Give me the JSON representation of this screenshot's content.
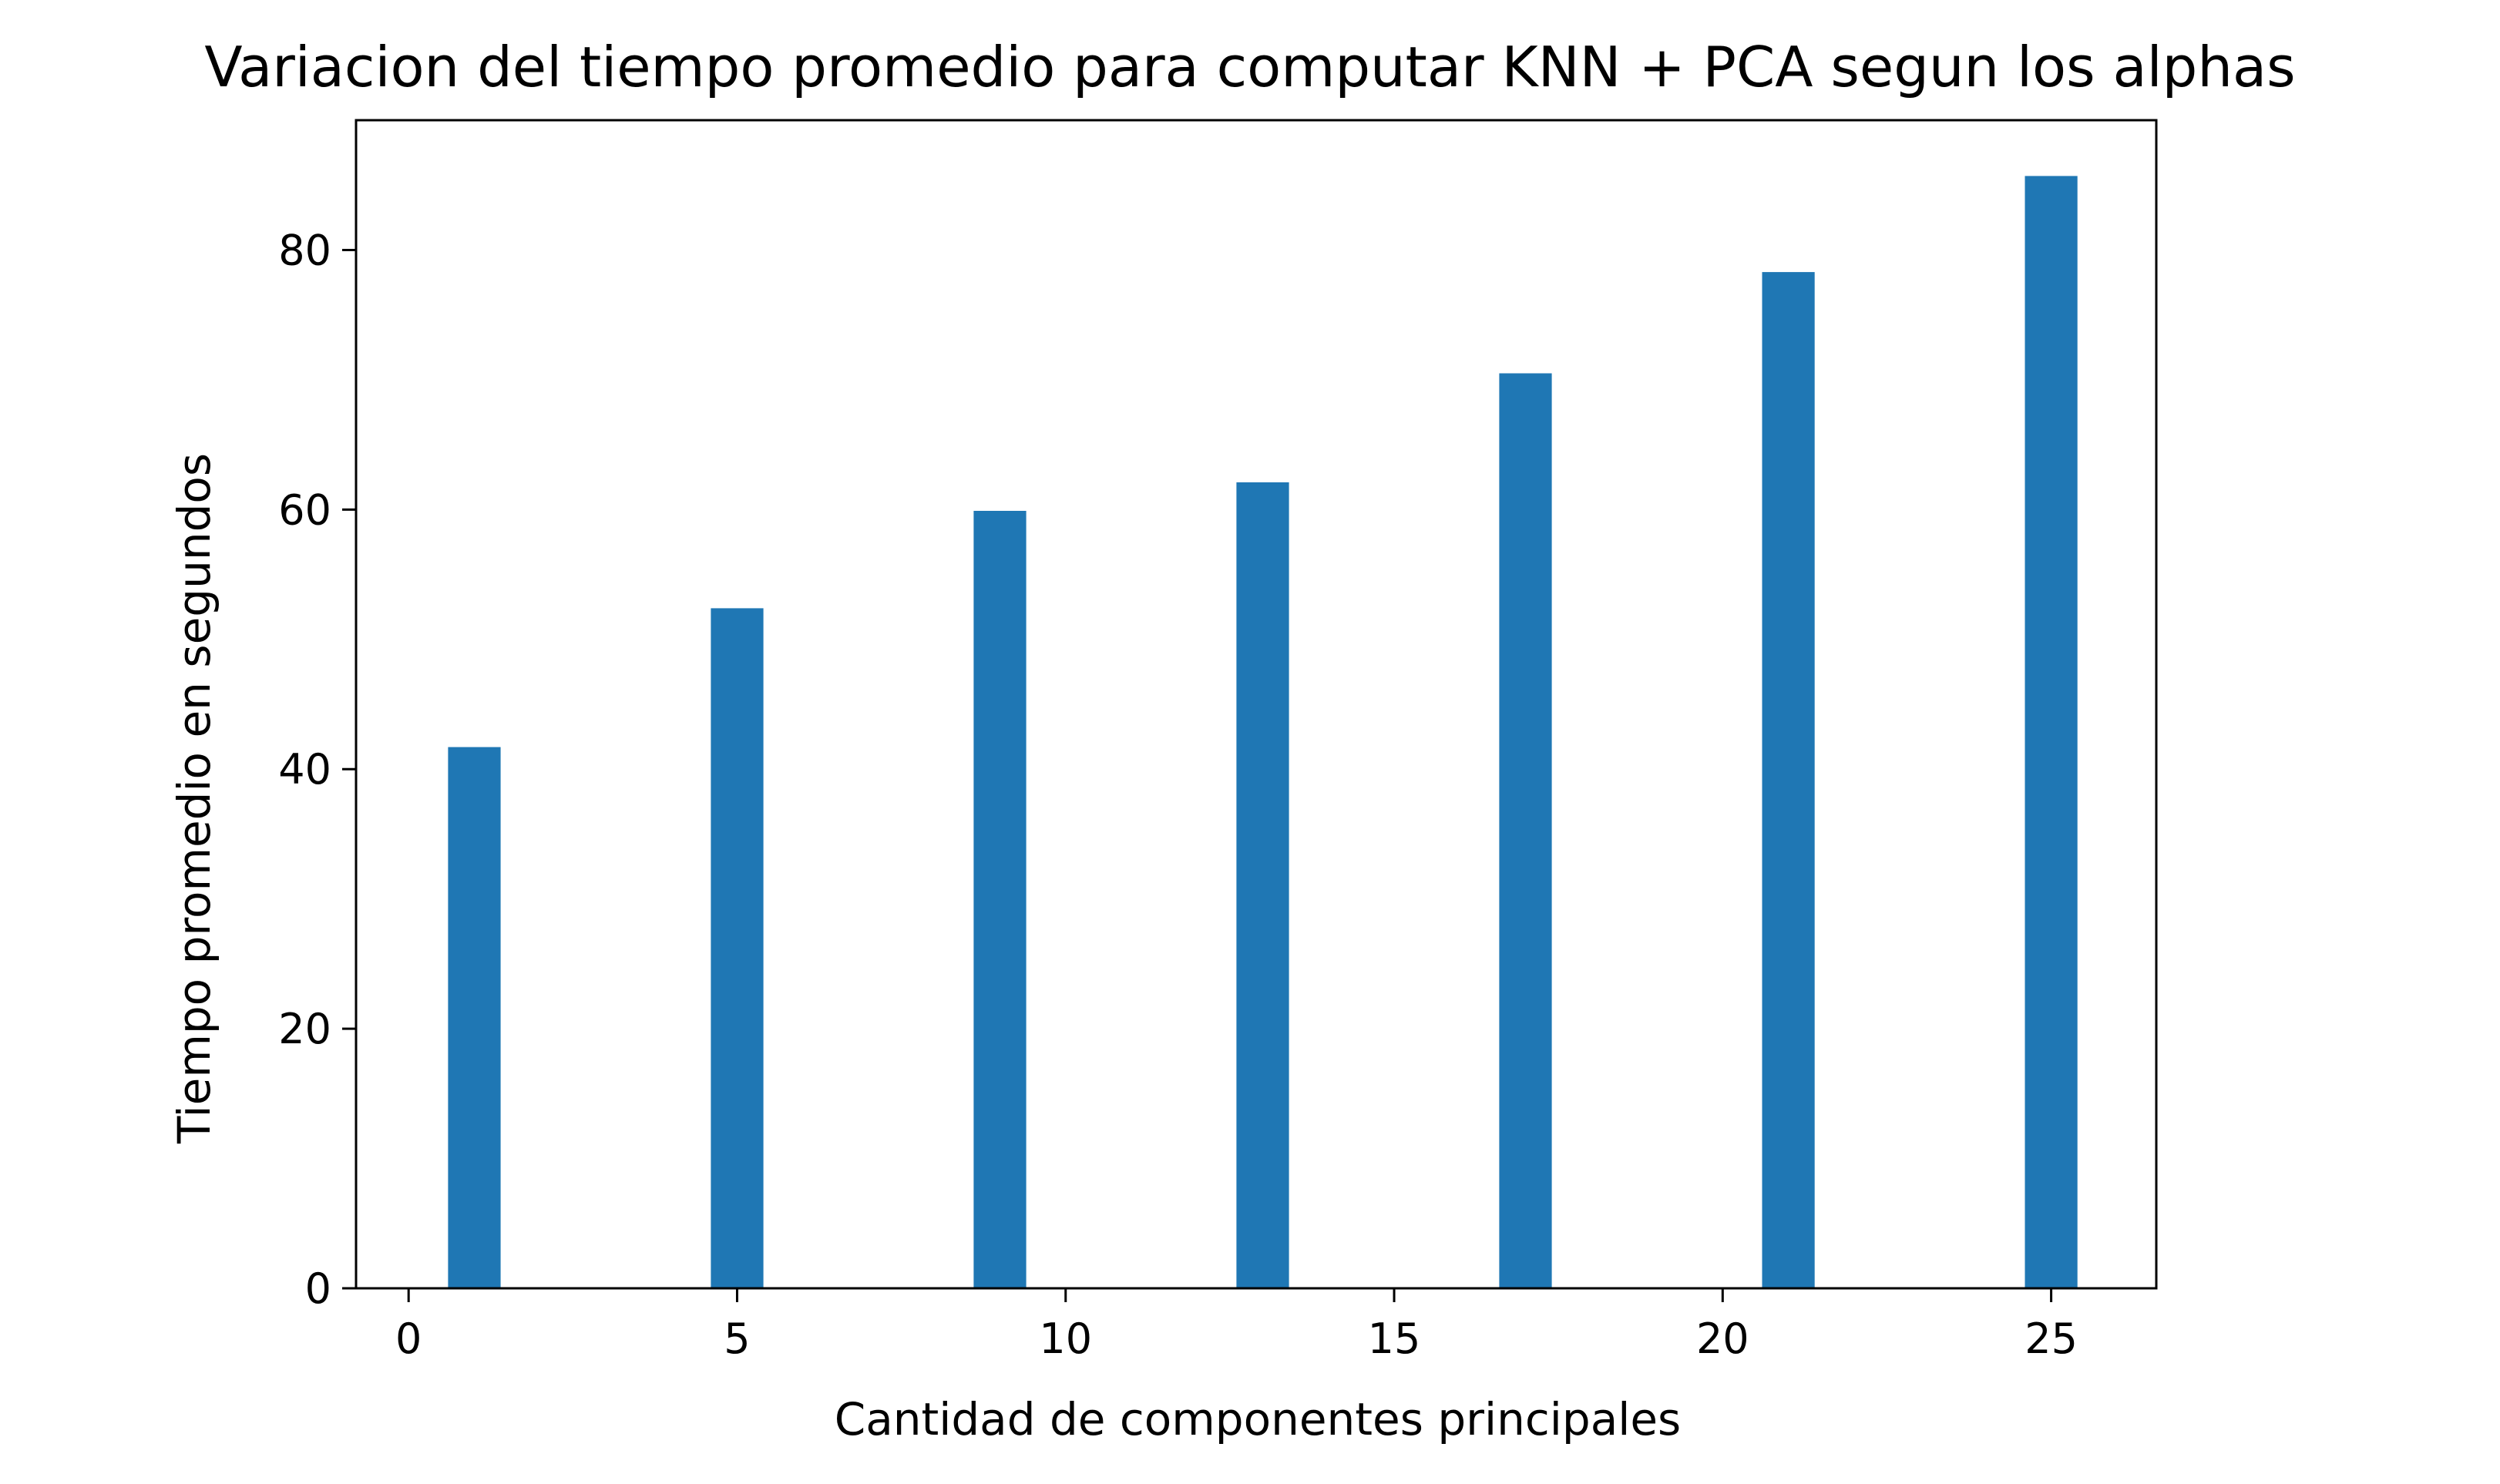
{
  "chart_data": {
    "type": "bar",
    "title": "Variacion del tiempo promedio para computar KNN + PCA segun los alphas",
    "xlabel": "Cantidad de componentes principales",
    "ylabel": "Tiempo promedio en segundos",
    "x": [
      1,
      5,
      9,
      13,
      17,
      21,
      25
    ],
    "values": [
      41.7,
      52.4,
      59.9,
      62.1,
      70.5,
      78.3,
      85.7
    ],
    "bar_width": 0.8,
    "xlim": [
      -0.8,
      26.6
    ],
    "ylim": [
      0,
      90
    ],
    "xticks": [
      0,
      5,
      10,
      15,
      20,
      25
    ],
    "yticks": [
      0,
      20,
      40,
      60,
      80
    ],
    "grid": false,
    "bar_color": "#1f77b4"
  }
}
